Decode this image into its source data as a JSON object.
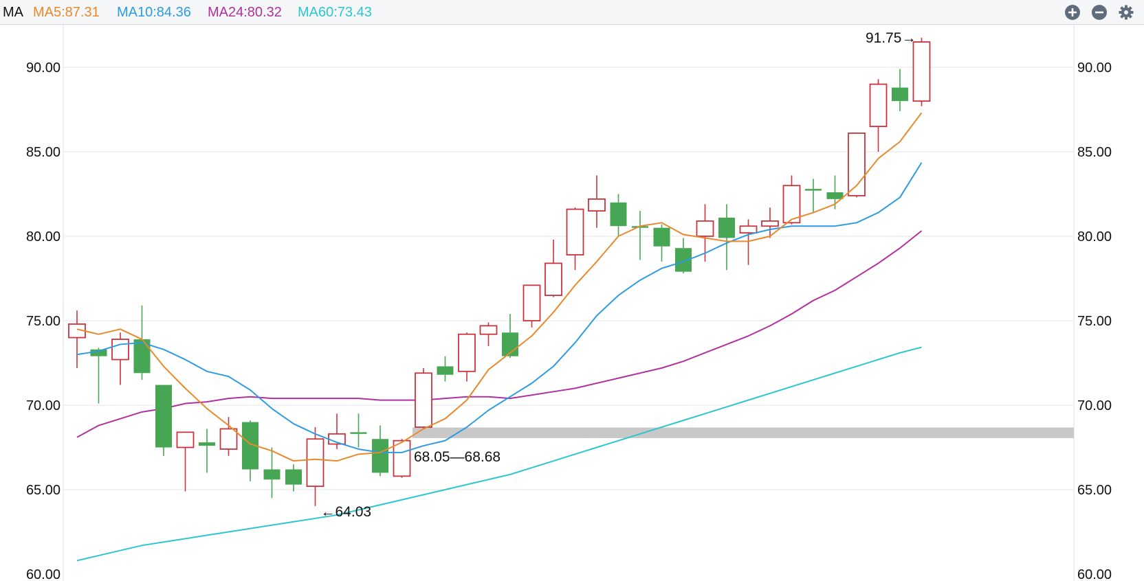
{
  "indicator_label": "MA",
  "ma_legend": [
    {
      "label": "MA5:87.31",
      "color": "#e8892b"
    },
    {
      "label": "MA10:84.36",
      "color": "#2d9be3"
    },
    {
      "label": "MA24:80.32",
      "color": "#b0309e"
    },
    {
      "label": "MA60:73.43",
      "color": "#2cc6cf"
    }
  ],
  "toolbar": {
    "zoom_in_icon": "plus-circle-icon",
    "zoom_out_icon": "minus-circle-icon",
    "settings_icon": "gear-icon",
    "icon_color": "#5f6c7b"
  },
  "chart_data": {
    "type": "candlestick",
    "title": "",
    "xlabel": "",
    "ylabel": "",
    "ylim": [
      60,
      92.5
    ],
    "y_ticks": [
      "60.00",
      "65.00",
      "70.00",
      "75.00",
      "80.00",
      "85.00",
      "90.00"
    ],
    "grid": true,
    "colors": {
      "up": "#c9333c",
      "down": "#46a653"
    },
    "candles": [
      {
        "open": 74.0,
        "close": 74.8,
        "high": 75.6,
        "low": 72.2
      },
      {
        "open": 73.3,
        "close": 72.9,
        "high": 73.4,
        "low": 70.1
      },
      {
        "open": 72.7,
        "close": 73.9,
        "high": 74.3,
        "low": 71.2
      },
      {
        "open": 73.9,
        "close": 71.9,
        "high": 75.9,
        "low": 71.5
      },
      {
        "open": 71.2,
        "close": 67.5,
        "high": 71.2,
        "low": 67.0
      },
      {
        "open": 67.5,
        "close": 68.4,
        "high": 68.4,
        "low": 64.9
      },
      {
        "open": 67.8,
        "close": 67.6,
        "high": 68.6,
        "low": 66.0
      },
      {
        "open": 67.4,
        "close": 68.6,
        "high": 69.3,
        "low": 67.0
      },
      {
        "open": 69.0,
        "close": 66.2,
        "high": 69.1,
        "low": 65.5
      },
      {
        "open": 66.2,
        "close": 65.6,
        "high": 67.5,
        "low": 64.5
      },
      {
        "open": 66.2,
        "close": 65.3,
        "high": 66.5,
        "low": 64.9
      },
      {
        "open": 65.2,
        "close": 68.0,
        "high": 68.7,
        "low": 64.03
      },
      {
        "open": 67.7,
        "close": 68.3,
        "high": 69.5,
        "low": 67.4
      },
      {
        "open": 68.4,
        "close": 68.3,
        "high": 69.5,
        "low": 67.5
      },
      {
        "open": 68.0,
        "close": 66.0,
        "high": 68.8,
        "low": 65.8
      },
      {
        "open": 65.8,
        "close": 67.9,
        "high": 68.0,
        "low": 65.7
      },
      {
        "open": 68.7,
        "close": 71.9,
        "high": 72.2,
        "low": 68.6
      },
      {
        "open": 72.3,
        "close": 71.8,
        "high": 72.9,
        "low": 71.4
      },
      {
        "open": 72.0,
        "close": 74.2,
        "high": 74.3,
        "low": 71.4
      },
      {
        "open": 74.2,
        "close": 74.7,
        "high": 74.9,
        "low": 73.5
      },
      {
        "open": 74.3,
        "close": 72.9,
        "high": 75.4,
        "low": 72.8
      },
      {
        "open": 75.0,
        "close": 77.1,
        "high": 77.1,
        "low": 74.6
      },
      {
        "open": 76.5,
        "close": 78.4,
        "high": 79.8,
        "low": 76.4
      },
      {
        "open": 78.9,
        "close": 81.6,
        "high": 81.7,
        "low": 78.0
      },
      {
        "open": 81.5,
        "close": 82.2,
        "high": 83.6,
        "low": 80.5
      },
      {
        "open": 82.0,
        "close": 80.6,
        "high": 82.5,
        "low": 80.0
      },
      {
        "open": 80.6,
        "close": 80.5,
        "high": 81.5,
        "low": 78.6
      },
      {
        "open": 80.5,
        "close": 79.4,
        "high": 80.7,
        "low": 78.5
      },
      {
        "open": 79.3,
        "close": 77.9,
        "high": 79.9,
        "low": 77.8
      },
      {
        "open": 80.0,
        "close": 80.9,
        "high": 81.9,
        "low": 78.5
      },
      {
        "open": 81.1,
        "close": 79.9,
        "high": 81.9,
        "low": 78.0
      },
      {
        "open": 80.2,
        "close": 80.6,
        "high": 81.0,
        "low": 78.3
      },
      {
        "open": 80.6,
        "close": 80.9,
        "high": 81.7,
        "low": 79.9
      },
      {
        "open": 80.8,
        "close": 83.0,
        "high": 83.6,
        "low": 80.7
      },
      {
        "open": 82.8,
        "close": 82.7,
        "high": 83.4,
        "low": 81.4
      },
      {
        "open": 82.6,
        "close": 82.2,
        "high": 83.6,
        "low": 81.6
      },
      {
        "open": 82.4,
        "close": 86.1,
        "high": 86.1,
        "low": 82.3
      },
      {
        "open": 86.5,
        "close": 89.0,
        "high": 89.3,
        "low": 85.0
      },
      {
        "open": 88.8,
        "close": 88.0,
        "high": 89.9,
        "low": 87.4
      },
      {
        "open": 88.0,
        "close": 91.5,
        "high": 91.75,
        "low": 87.7
      }
    ],
    "ma_series": [
      {
        "name": "MA5",
        "color": "#e8892b",
        "values": [
          74.5,
          74.2,
          74.5,
          73.9,
          72.3,
          71.0,
          69.8,
          68.8,
          67.7,
          67.3,
          66.7,
          66.8,
          66.7,
          67.1,
          67.2,
          67.8,
          68.6,
          69.2,
          70.3,
          72.1,
          73.1,
          74.1,
          75.5,
          77.1,
          78.5,
          80.0,
          80.6,
          80.8,
          80.1,
          79.9,
          79.7,
          79.7,
          80.0,
          81.0,
          81.4,
          81.9,
          83.0,
          84.6,
          85.6,
          87.31
        ]
      },
      {
        "name": "MA10",
        "color": "#2d9be3",
        "values": [
          73.0,
          73.2,
          73.6,
          73.7,
          73.3,
          72.7,
          72.0,
          71.7,
          70.9,
          69.8,
          68.9,
          68.3,
          67.8,
          67.4,
          67.2,
          67.2,
          67.6,
          67.9,
          68.7,
          69.7,
          70.5,
          71.3,
          72.3,
          73.7,
          75.3,
          76.5,
          77.4,
          78.1,
          78.5,
          79.0,
          79.6,
          80.1,
          80.4,
          80.6,
          80.6,
          80.6,
          80.8,
          81.4,
          82.3,
          84.36
        ]
      },
      {
        "name": "MA24",
        "color": "#b0309e",
        "values": [
          68.1,
          68.8,
          69.2,
          69.6,
          69.8,
          70.1,
          70.2,
          70.4,
          70.5,
          70.4,
          70.4,
          70.4,
          70.4,
          70.4,
          70.3,
          70.3,
          70.3,
          70.4,
          70.5,
          70.5,
          70.4,
          70.6,
          70.8,
          71.0,
          71.3,
          71.6,
          71.9,
          72.2,
          72.6,
          73.1,
          73.6,
          74.1,
          74.7,
          75.4,
          76.2,
          76.8,
          77.6,
          78.4,
          79.3,
          80.32
        ]
      },
      {
        "name": "MA60",
        "color": "#2cc6cf",
        "values": [
          60.8,
          61.1,
          61.4,
          61.7,
          61.9,
          62.1,
          62.3,
          62.5,
          62.7,
          62.9,
          63.1,
          63.3,
          63.5,
          63.8,
          64.1,
          64.4,
          64.7,
          65.0,
          65.3,
          65.6,
          65.9,
          66.3,
          66.7,
          67.1,
          67.5,
          67.9,
          68.3,
          68.7,
          69.1,
          69.5,
          69.9,
          70.3,
          70.7,
          71.1,
          71.5,
          71.9,
          72.3,
          72.7,
          73.1,
          73.43
        ]
      }
    ],
    "support_band": {
      "low": 68.05,
      "high": 68.68,
      "start_index": 16,
      "label": "68.05—68.68",
      "color": "#c8c8c8"
    },
    "annotations": {
      "high_label": "91.75→",
      "low_label": "←64.03"
    }
  }
}
